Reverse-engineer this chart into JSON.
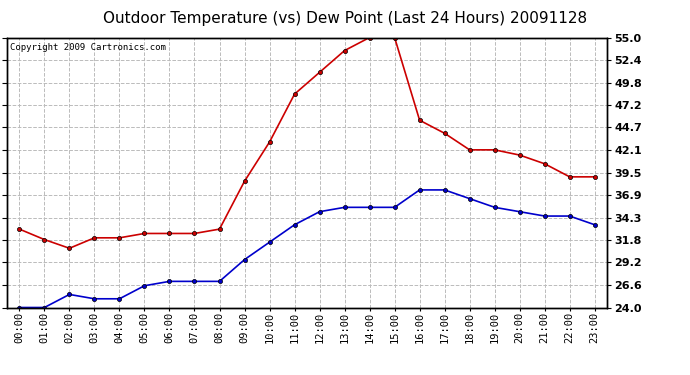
{
  "title": "Outdoor Temperature (vs) Dew Point (Last 24 Hours) 20091128",
  "copyright": "Copyright 2009 Cartronics.com",
  "x_labels": [
    "00:00",
    "01:00",
    "02:00",
    "03:00",
    "04:00",
    "05:00",
    "06:00",
    "07:00",
    "08:00",
    "09:00",
    "10:00",
    "11:00",
    "12:00",
    "13:00",
    "14:00",
    "15:00",
    "16:00",
    "17:00",
    "18:00",
    "19:00",
    "20:00",
    "21:00",
    "22:00",
    "23:00"
  ],
  "temp_red": [
    33.0,
    31.8,
    30.8,
    32.0,
    32.0,
    32.5,
    32.5,
    32.5,
    33.0,
    38.5,
    43.0,
    48.5,
    51.0,
    53.5,
    55.0,
    55.0,
    45.5,
    44.0,
    42.1,
    42.1,
    41.5,
    40.5,
    39.0,
    39.0
  ],
  "dew_blue": [
    24.0,
    24.0,
    25.5,
    25.0,
    25.0,
    26.5,
    27.0,
    27.0,
    27.0,
    29.5,
    31.5,
    33.5,
    35.0,
    35.5,
    35.5,
    35.5,
    37.5,
    37.5,
    36.5,
    35.5,
    35.0,
    34.5,
    34.5,
    33.5
  ],
  "y_ticks": [
    24.0,
    26.6,
    29.2,
    31.8,
    34.3,
    36.9,
    39.5,
    42.1,
    44.7,
    47.2,
    49.8,
    52.4,
    55.0
  ],
  "ylim": [
    24.0,
    55.0
  ],
  "background_color": "#ffffff",
  "plot_bg_color": "#ffffff",
  "grid_color": "#bbbbbb",
  "temp_color": "#cc0000",
  "dew_color": "#0000cc",
  "title_fontsize": 11,
  "copyright_fontsize": 6.5,
  "tick_fontsize": 7.5,
  "ytick_fontsize": 8
}
